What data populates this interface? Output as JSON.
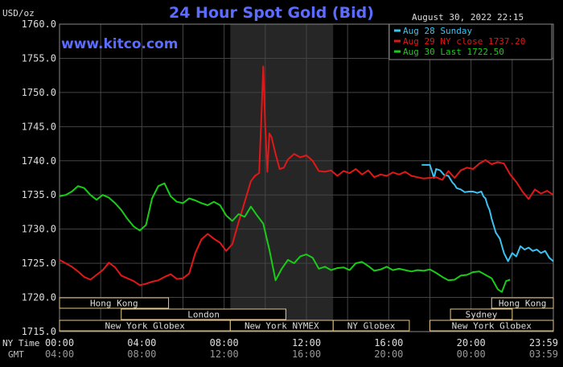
{
  "chart_data": {
    "type": "line",
    "title": "24 Hour Spot Gold (Bid)",
    "datetime": "August 30, 2022 22:15",
    "watermark": "www.kitco.com",
    "ylabel": "USD/oz",
    "ylim": [
      1715.0,
      1760.0
    ],
    "yticks": [
      "1760.0",
      "1755.0",
      "1750.0",
      "1745.0",
      "1740.0",
      "1735.0",
      "1730.0",
      "1725.0",
      "1720.0",
      "1715.0"
    ],
    "xlim": [
      0,
      24
    ],
    "x_row_labels": [
      "NY Time",
      "GMT"
    ],
    "xticks_ny": [
      "00:00",
      "04:00",
      "08:00",
      "12:00",
      "16:00",
      "20:00",
      "23:59"
    ],
    "xticks_gmt": [
      "04:00",
      "08:00",
      "12:00",
      "16:00",
      "20:00",
      "00:00",
      "03:59"
    ],
    "grid": true,
    "legend_position": "top-right",
    "highlight_window": [
      8.3,
      13.3
    ],
    "sessions": [
      {
        "label": "Hong Kong",
        "start": 0,
        "end": 5.3,
        "row": 0
      },
      {
        "label": "Hong Kong",
        "start": 21.0,
        "end": 24,
        "row": 0
      },
      {
        "label": "London",
        "start": 3.0,
        "end": 11.0,
        "row": 1
      },
      {
        "label": "Sydney",
        "start": 19.0,
        "end": 22.0,
        "row": 1
      },
      {
        "label": "New York Globex",
        "start": 0,
        "end": 8.3,
        "row": 2
      },
      {
        "label": "New York NYMEX",
        "start": 8.3,
        "end": 13.3,
        "row": 2
      },
      {
        "label": "NY Globex",
        "start": 13.3,
        "end": 17.0,
        "row": 2
      },
      {
        "label": "New York Globex",
        "start": 18.0,
        "end": 24,
        "row": 2
      }
    ],
    "series": [
      {
        "name": "Aug 28 Sunday",
        "color": "#3cc2f0",
        "x": [
          17.6,
          18.0,
          18.2,
          18.3,
          18.5,
          18.7,
          18.9,
          19.1,
          19.2,
          19.3,
          19.5,
          19.7,
          19.9,
          20.1,
          20.3,
          20.5,
          20.6,
          20.7,
          20.8,
          20.9,
          21.0,
          21.2,
          21.4,
          21.6,
          21.8,
          22.0,
          22.2,
          22.4,
          22.6,
          22.8,
          23.0,
          23.2,
          23.4,
          23.6,
          23.8,
          24.0
        ],
        "y": [
          1739.4,
          1739.4,
          1737.5,
          1738.8,
          1738.6,
          1737.9,
          1737.8,
          1736.8,
          1736.5,
          1736.0,
          1735.8,
          1735.4,
          1735.5,
          1735.5,
          1735.3,
          1735.5,
          1734.8,
          1734.5,
          1733.5,
          1732.8,
          1731.5,
          1729.5,
          1728.6,
          1726.5,
          1725.3,
          1726.5,
          1726.0,
          1727.5,
          1727.0,
          1727.3,
          1726.8,
          1727.0,
          1726.5,
          1726.8,
          1725.8,
          1725.3
        ]
      },
      {
        "name": "Aug 29 NY close 1737.20",
        "color": "#e01818",
        "x": [
          0,
          0.3,
          0.6,
          0.9,
          1.2,
          1.5,
          1.8,
          2.1,
          2.4,
          2.7,
          3.0,
          3.3,
          3.6,
          3.9,
          4.2,
          4.5,
          4.8,
          5.1,
          5.4,
          5.7,
          6.0,
          6.3,
          6.6,
          6.9,
          7.2,
          7.5,
          7.8,
          8.1,
          8.4,
          8.7,
          9.0,
          9.3,
          9.5,
          9.7,
          9.8,
          9.9,
          10.0,
          10.1,
          10.2,
          10.3,
          10.5,
          10.7,
          10.9,
          11.1,
          11.4,
          11.7,
          12.0,
          12.3,
          12.6,
          12.9,
          13.2,
          13.5,
          13.8,
          14.1,
          14.4,
          14.7,
          15.0,
          15.3,
          15.6,
          15.9,
          16.2,
          16.5,
          16.8,
          17.1,
          17.4,
          17.7,
          18.0,
          18.3,
          18.6,
          18.9,
          19.2,
          19.5,
          19.8,
          20.1,
          20.4,
          20.7,
          21.0,
          21.3,
          21.6,
          21.9,
          22.2,
          22.5,
          22.8,
          23.1,
          23.4,
          23.7,
          24.0
        ],
        "y": [
          1725.5,
          1725.0,
          1724.5,
          1723.8,
          1723.0,
          1722.6,
          1723.3,
          1724.0,
          1725.1,
          1724.4,
          1723.2,
          1722.8,
          1722.4,
          1721.8,
          1722.0,
          1722.3,
          1722.5,
          1723.0,
          1723.4,
          1722.7,
          1722.8,
          1723.5,
          1726.5,
          1728.5,
          1729.3,
          1728.6,
          1728.0,
          1726.8,
          1727.8,
          1731.0,
          1734.0,
          1737.0,
          1737.8,
          1738.2,
          1745.5,
          1753.8,
          1745.0,
          1738.4,
          1744.0,
          1743.5,
          1741.0,
          1738.8,
          1739.0,
          1740.2,
          1741.0,
          1740.5,
          1740.8,
          1740.0,
          1738.5,
          1738.4,
          1738.6,
          1737.8,
          1738.5,
          1738.2,
          1738.8,
          1738.0,
          1738.6,
          1737.6,
          1738.0,
          1737.8,
          1738.3,
          1738.0,
          1738.4,
          1737.8,
          1737.6,
          1737.4,
          1737.5,
          1737.6,
          1737.2,
          1738.5,
          1737.5,
          1738.6,
          1739.0,
          1738.8,
          1739.6,
          1740.1,
          1739.5,
          1739.8,
          1739.6,
          1738.0,
          1736.9,
          1735.5,
          1734.4,
          1735.8,
          1735.2,
          1735.6,
          1735.0
        ]
      },
      {
        "name": "Aug 30 Last 1722.50",
        "color": "#18cc18",
        "x": [
          0,
          0.3,
          0.6,
          0.9,
          1.2,
          1.5,
          1.8,
          2.1,
          2.4,
          2.7,
          3.0,
          3.3,
          3.6,
          3.9,
          4.2,
          4.5,
          4.8,
          5.1,
          5.4,
          5.7,
          6.0,
          6.3,
          6.6,
          6.9,
          7.2,
          7.5,
          7.8,
          8.1,
          8.4,
          8.7,
          9.0,
          9.3,
          9.6,
          9.9,
          10.2,
          10.5,
          10.8,
          11.1,
          11.4,
          11.7,
          12.0,
          12.3,
          12.6,
          12.9,
          13.2,
          13.5,
          13.8,
          14.1,
          14.4,
          14.7,
          15.0,
          15.3,
          15.6,
          15.9,
          16.2,
          16.5,
          16.8,
          17.1,
          17.4,
          17.7,
          18.0,
          18.3,
          18.6,
          18.9,
          19.2,
          19.5,
          19.8,
          20.1,
          20.4,
          20.7,
          21.0,
          21.3,
          21.5,
          21.7,
          21.9
        ],
        "y": [
          1734.8,
          1735.0,
          1735.5,
          1736.3,
          1736.0,
          1735.0,
          1734.3,
          1735.0,
          1734.6,
          1733.8,
          1732.8,
          1731.5,
          1730.4,
          1729.8,
          1730.6,
          1734.5,
          1736.3,
          1736.7,
          1734.8,
          1734.0,
          1733.8,
          1734.5,
          1734.2,
          1733.8,
          1733.5,
          1734.0,
          1733.5,
          1732.0,
          1731.2,
          1732.2,
          1731.8,
          1733.3,
          1732.0,
          1730.8,
          1727.0,
          1722.5,
          1724.2,
          1725.5,
          1725.0,
          1726.0,
          1726.3,
          1725.8,
          1724.2,
          1724.5,
          1724.0,
          1724.3,
          1724.4,
          1724.0,
          1725.0,
          1725.2,
          1724.6,
          1723.9,
          1724.1,
          1724.5,
          1724.0,
          1724.2,
          1724.0,
          1723.8,
          1724.0,
          1723.9,
          1724.1,
          1723.6,
          1723.0,
          1722.5,
          1722.6,
          1723.2,
          1723.3,
          1723.7,
          1723.8,
          1723.3,
          1722.8,
          1721.2,
          1720.8,
          1722.4,
          1722.6
        ]
      }
    ]
  }
}
